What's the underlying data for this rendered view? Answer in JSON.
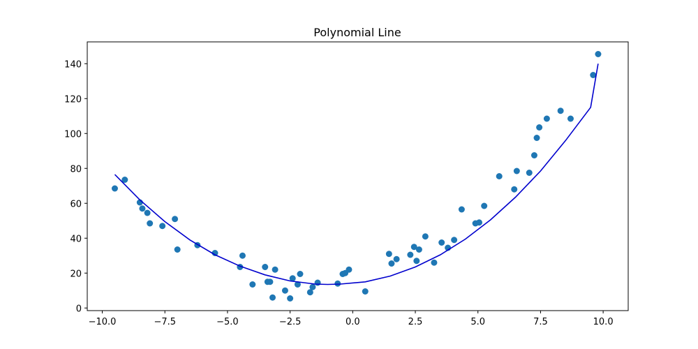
{
  "chart_data": {
    "type": "scatter",
    "title": "Polynomial Line",
    "xlabel": "",
    "ylabel": "",
    "xlim": [
      -10.6,
      11.0
    ],
    "ylim": [
      -1.5,
      152.5
    ],
    "x_ticks": [
      -10.0,
      -7.5,
      -5.0,
      -2.5,
      0.0,
      2.5,
      5.0,
      7.5,
      10.0
    ],
    "x_tick_labels": [
      "−10.0",
      "−7.5",
      "−5.0",
      "−2.5",
      "0.0",
      "2.5",
      "5.0",
      "7.5",
      "10.0"
    ],
    "y_ticks": [
      0,
      20,
      40,
      60,
      80,
      100,
      120,
      140
    ],
    "y_tick_labels": [
      "0",
      "20",
      "40",
      "60",
      "80",
      "100",
      "120",
      "140"
    ],
    "grid": false,
    "colors": {
      "points": "#1f77b4",
      "line": "#0000cd",
      "axes": "#000000"
    },
    "series": [
      {
        "kind": "scatter",
        "points": [
          {
            "x": -9.5,
            "y": 68.5
          },
          {
            "x": -9.1,
            "y": 73.5
          },
          {
            "x": -8.5,
            "y": 60.5
          },
          {
            "x": -8.4,
            "y": 57.0
          },
          {
            "x": -8.2,
            "y": 54.5
          },
          {
            "x": -8.1,
            "y": 48.5
          },
          {
            "x": -7.6,
            "y": 47.0
          },
          {
            "x": -7.1,
            "y": 51.0
          },
          {
            "x": -7.0,
            "y": 33.5
          },
          {
            "x": -6.2,
            "y": 36.0
          },
          {
            "x": -5.5,
            "y": 31.5
          },
          {
            "x": -4.5,
            "y": 23.5
          },
          {
            "x": -4.4,
            "y": 30.0
          },
          {
            "x": -4.0,
            "y": 13.5
          },
          {
            "x": -3.5,
            "y": 23.5
          },
          {
            "x": -3.4,
            "y": 15.0
          },
          {
            "x": -3.3,
            "y": 15.0
          },
          {
            "x": -3.2,
            "y": 6.0
          },
          {
            "x": -3.1,
            "y": 22.0
          },
          {
            "x": -2.7,
            "y": 10.0
          },
          {
            "x": -2.5,
            "y": 5.5
          },
          {
            "x": -2.4,
            "y": 17.0
          },
          {
            "x": -2.2,
            "y": 13.5
          },
          {
            "x": -2.1,
            "y": 19.5
          },
          {
            "x": -1.7,
            "y": 9.0
          },
          {
            "x": -1.6,
            "y": 12.0
          },
          {
            "x": -1.4,
            "y": 14.5
          },
          {
            "x": -0.6,
            "y": 14.0
          },
          {
            "x": -0.4,
            "y": 19.5
          },
          {
            "x": -0.3,
            "y": 20.0
          },
          {
            "x": -0.15,
            "y": 22.0
          },
          {
            "x": 0.5,
            "y": 9.5
          },
          {
            "x": 1.45,
            "y": 31.0
          },
          {
            "x": 1.55,
            "y": 25.5
          },
          {
            "x": 1.75,
            "y": 28.0
          },
          {
            "x": 2.3,
            "y": 30.5
          },
          {
            "x": 2.45,
            "y": 35.0
          },
          {
            "x": 2.55,
            "y": 27.0
          },
          {
            "x": 2.65,
            "y": 33.5
          },
          {
            "x": 2.9,
            "y": 41.0
          },
          {
            "x": 3.25,
            "y": 26.0
          },
          {
            "x": 3.55,
            "y": 37.5
          },
          {
            "x": 3.8,
            "y": 34.5
          },
          {
            "x": 4.05,
            "y": 39.0
          },
          {
            "x": 4.35,
            "y": 56.5
          },
          {
            "x": 4.9,
            "y": 48.5
          },
          {
            "x": 5.05,
            "y": 49.0
          },
          {
            "x": 5.25,
            "y": 58.5
          },
          {
            "x": 5.85,
            "y": 75.5
          },
          {
            "x": 6.45,
            "y": 68.0
          },
          {
            "x": 6.55,
            "y": 78.5
          },
          {
            "x": 7.05,
            "y": 77.5
          },
          {
            "x": 7.25,
            "y": 87.5
          },
          {
            "x": 7.35,
            "y": 97.5
          },
          {
            "x": 7.45,
            "y": 103.5
          },
          {
            "x": 7.75,
            "y": 108.5
          },
          {
            "x": 8.3,
            "y": 113.0
          },
          {
            "x": 8.7,
            "y": 108.5
          },
          {
            "x": 9.6,
            "y": 133.5
          },
          {
            "x": 9.8,
            "y": 145.5
          }
        ]
      },
      {
        "kind": "line",
        "points": [
          {
            "x": -9.5,
            "y": 76.5
          },
          {
            "x": -8.5,
            "y": 62.0
          },
          {
            "x": -7.5,
            "y": 49.5
          },
          {
            "x": -6.5,
            "y": 39.0
          },
          {
            "x": -5.5,
            "y": 30.5
          },
          {
            "x": -4.5,
            "y": 24.0
          },
          {
            "x": -3.5,
            "y": 19.0
          },
          {
            "x": -2.5,
            "y": 15.5
          },
          {
            "x": -1.5,
            "y": 13.7
          },
          {
            "x": -1.0,
            "y": 13.5
          },
          {
            "x": -0.5,
            "y": 13.7
          },
          {
            "x": 0.5,
            "y": 15.0
          },
          {
            "x": 1.5,
            "y": 18.3
          },
          {
            "x": 2.5,
            "y": 23.5
          },
          {
            "x": 3.5,
            "y": 30.5
          },
          {
            "x": 4.5,
            "y": 39.5
          },
          {
            "x": 5.5,
            "y": 50.5
          },
          {
            "x": 6.5,
            "y": 63.5
          },
          {
            "x": 7.5,
            "y": 78.5
          },
          {
            "x": 8.5,
            "y": 96.0
          },
          {
            "x": 9.5,
            "y": 115.0
          },
          {
            "x": 9.8,
            "y": 140.0
          }
        ]
      }
    ]
  }
}
